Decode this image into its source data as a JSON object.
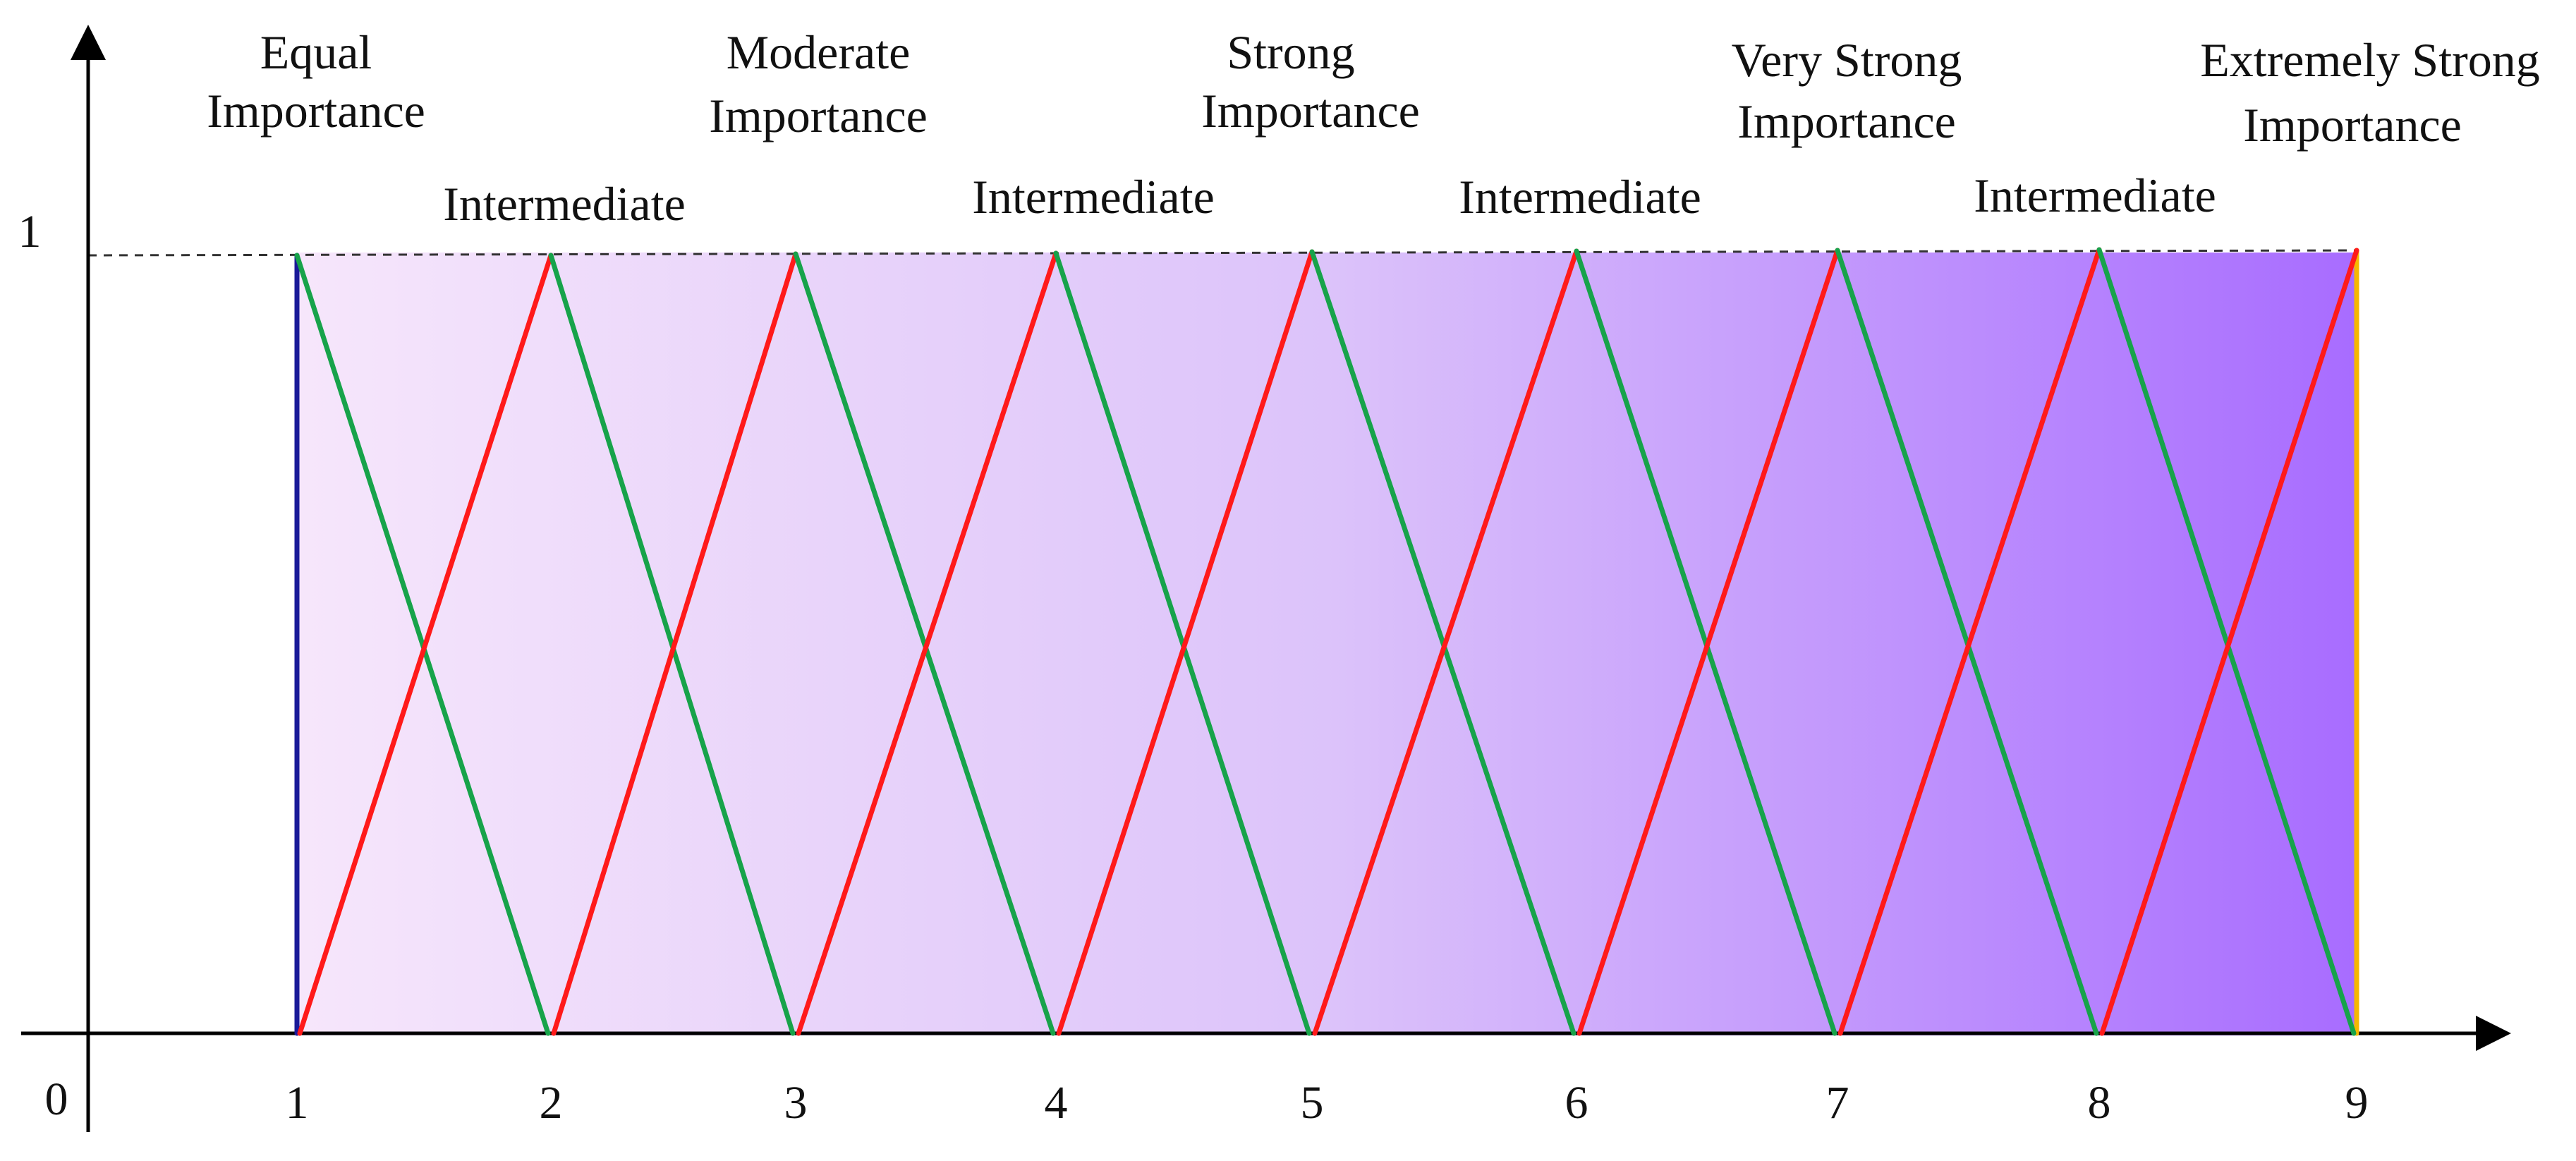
{
  "diagram": {
    "y_top_label": "1",
    "origin_label": "0",
    "x_ticks": [
      "1",
      "2",
      "3",
      "4",
      "5",
      "6",
      "7",
      "8",
      "9"
    ],
    "main_labels": [
      {
        "line1": "Equal",
        "line2": "Importance"
      },
      {
        "line1": "Moderate",
        "line2": "Importance"
      },
      {
        "line1": "Strong",
        "line2": "Importance"
      },
      {
        "line1": "Very Strong",
        "line2": "Importance"
      },
      {
        "line1": "Extremely Strong",
        "line2": "Importance"
      }
    ],
    "intermediate_labels": [
      "Intermediate",
      "Intermediate",
      "Intermediate",
      "Intermediate"
    ],
    "colors": {
      "rising_edge": "#ff1a1a",
      "falling_edge": "#17a34a",
      "left_boundary": "#1a1a99",
      "right_boundary": "#f5b800",
      "gradient_start": "#f6e6fb",
      "gradient_end": "#a86cff",
      "axis": "#000000"
    }
  }
}
